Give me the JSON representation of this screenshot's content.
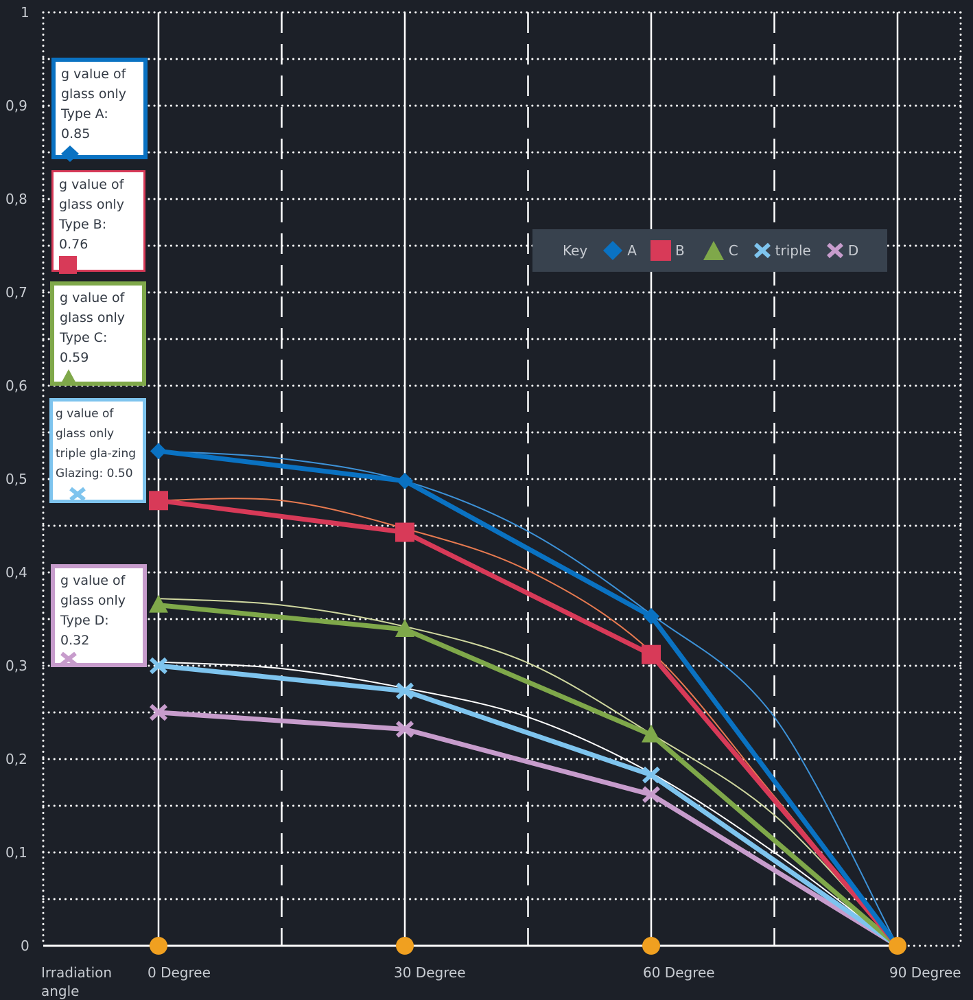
{
  "chart_data": {
    "type": "line",
    "title": "",
    "xlabel": "Irradiation angle",
    "ylabel": "",
    "categories": [
      "0 Degree",
      "30 Degree",
      "60 Degree",
      "90 Degree"
    ],
    "x": [
      0,
      30,
      60,
      90
    ],
    "ylim": [
      0,
      1
    ],
    "yticks": [
      "0",
      "0,1",
      "0,2",
      "0,3",
      "0,4",
      "0,5",
      "0,6",
      "0,7",
      "0,8",
      "0,9",
      "1"
    ],
    "grid": true,
    "series": [
      {
        "name": "A",
        "color": "#0a72c2",
        "thin_color": "#3d92d8",
        "marker": "diamond",
        "values": [
          0.53,
          0.498,
          0.353,
          0.0
        ],
        "thin_values": [
          [
            0,
            0.53
          ],
          [
            15,
            0.522
          ],
          [
            30,
            0.498
          ],
          [
            45,
            0.444
          ],
          [
            60,
            0.355
          ],
          [
            75,
            0.245
          ],
          [
            90,
            0.0
          ]
        ]
      },
      {
        "name": "B",
        "color": "#d83a58",
        "thin_color": "#e87a50",
        "marker": "square",
        "values": [
          0.477,
          0.443,
          0.312,
          0.0
        ],
        "thin_values": [
          [
            0,
            0.477
          ],
          [
            15,
            0.477
          ],
          [
            30,
            0.447
          ],
          [
            45,
            0.402
          ],
          [
            60,
            0.315
          ],
          [
            75,
            0.16
          ],
          [
            90,
            0.0
          ]
        ]
      },
      {
        "name": "C",
        "color": "#7fa84a",
        "thin_color": "#d0d8a0",
        "marker": "triangle",
        "values": [
          0.365,
          0.339,
          0.226,
          0.0
        ],
        "thin_values": [
          [
            0,
            0.372
          ],
          [
            15,
            0.365
          ],
          [
            30,
            0.342
          ],
          [
            45,
            0.303
          ],
          [
            60,
            0.227
          ],
          [
            75,
            0.14
          ],
          [
            90,
            0.0
          ]
        ]
      },
      {
        "name": "triple",
        "color": "#7ec4ee",
        "thin_color": "#ffffff",
        "marker": "x",
        "values": [
          0.3,
          0.273,
          0.183,
          0.0
        ],
        "thin_values": [
          [
            0,
            0.304
          ],
          [
            15,
            0.297
          ],
          [
            30,
            0.276
          ],
          [
            45,
            0.245
          ],
          [
            60,
            0.185
          ],
          [
            75,
            0.1
          ],
          [
            90,
            0.0
          ]
        ]
      },
      {
        "name": "D",
        "color": "#c79ccc",
        "thin_color": "#c79ccc",
        "marker": "x",
        "values": [
          0.25,
          0.232,
          0.162,
          0.0
        ],
        "thin_values": []
      }
    ],
    "legend": {
      "title": "Key",
      "placement": "center-right",
      "items": [
        "A",
        "B",
        "C",
        "triple",
        "D"
      ]
    }
  },
  "annotations": [
    {
      "id": "a",
      "text": "g value of glass only Type A: 0.85",
      "border_color": "#0a72c2",
      "marker": "diamond",
      "marker_color": "#0a72c2"
    },
    {
      "id": "b",
      "text": "g value of glass only Type B: 0.76",
      "border_color": "#d83a58",
      "marker": "square",
      "marker_color": "#d83a58"
    },
    {
      "id": "c",
      "text": "g value of glass only Type C: 0.59",
      "border_color": "#7fa84a",
      "marker": "triangle",
      "marker_color": "#7fa84a"
    },
    {
      "id": "t",
      "text": "g value of glass only triple gla-zing Glazing: 0.50",
      "border_color": "#7ec4ee",
      "marker": "x",
      "marker_color": "#7ec4ee"
    },
    {
      "id": "d",
      "text": "g value of glass only Type D: 0.32",
      "border_color": "#c79ccc",
      "marker": "x",
      "marker_color": "#c79ccc"
    }
  ],
  "colors": {
    "background": "#1c2028",
    "grid": "#ffffff",
    "axis_label": "#c8ccd2",
    "baseline_marker": "#f0a020",
    "key_background": "#38424e"
  }
}
